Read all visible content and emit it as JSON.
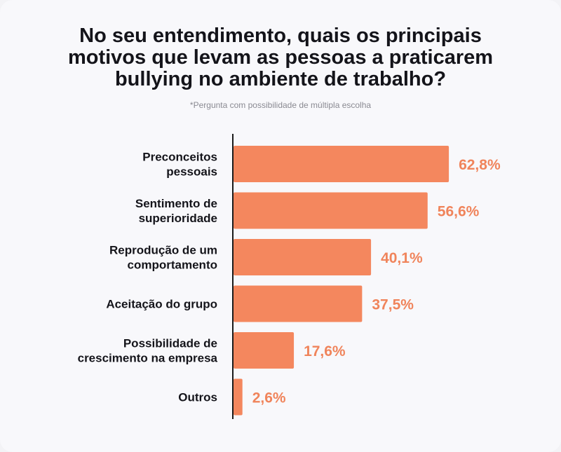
{
  "title": "No seu entendimento, quais os principais motivos que levam as pessoas a praticarem bullying no ambiente de trabalho?",
  "subtitle": "*Pergunta com possibilidade de múltipla escolha",
  "colors": {
    "bar": "#f4875e",
    "value_text": "#f0845b",
    "axis": "#1a1a1a"
  },
  "chart_data": {
    "type": "bar",
    "orientation": "horizontal",
    "categories": [
      [
        "Preconceitos",
        "pessoais"
      ],
      [
        "Sentimento de",
        "superioridade"
      ],
      [
        "Reprodução de um",
        "comportamento"
      ],
      [
        "Aceitação do grupo"
      ],
      [
        "Possibilidade de",
        "crescimento na empresa"
      ],
      [
        "Outros"
      ]
    ],
    "values": [
      62.8,
      56.6,
      40.1,
      37.5,
      17.6,
      2.6
    ],
    "value_labels": [
      "62,8%",
      "56,6%",
      "40,1%",
      "37,5%",
      "17,6%",
      "2,6%"
    ],
    "xlim": [
      0,
      100
    ],
    "grid": false
  }
}
